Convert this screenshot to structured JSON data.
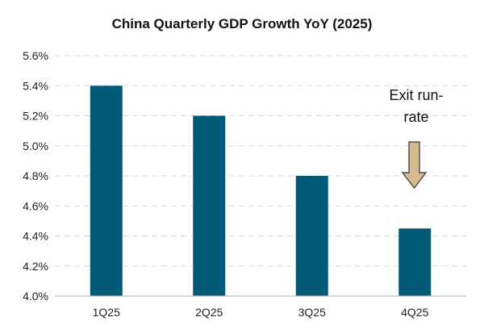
{
  "chart_data": {
    "type": "bar",
    "title": "China Quarterly GDP Growth YoY (2025)",
    "xlabel": "",
    "ylabel": "",
    "categories": [
      "1Q25",
      "2Q25",
      "3Q25",
      "4Q25"
    ],
    "values": [
      5.4,
      5.2,
      4.8,
      4.45
    ],
    "ylim": [
      4.0,
      5.6
    ],
    "yticks": [
      "4.0%",
      "4.2%",
      "4.4%",
      "4.6%",
      "4.8%",
      "5.0%",
      "5.2%",
      "5.4%",
      "5.6%"
    ],
    "ytick_values": [
      4.0,
      4.2,
      4.4,
      4.6,
      4.8,
      5.0,
      5.2,
      5.4,
      5.6
    ],
    "grid": true,
    "legend": "none",
    "bar_color": "#005A78",
    "annotation": {
      "lines": [
        "Exit run-",
        "rate"
      ],
      "target_category": "4Q25",
      "arrow_color": "#D6B98C"
    }
  }
}
